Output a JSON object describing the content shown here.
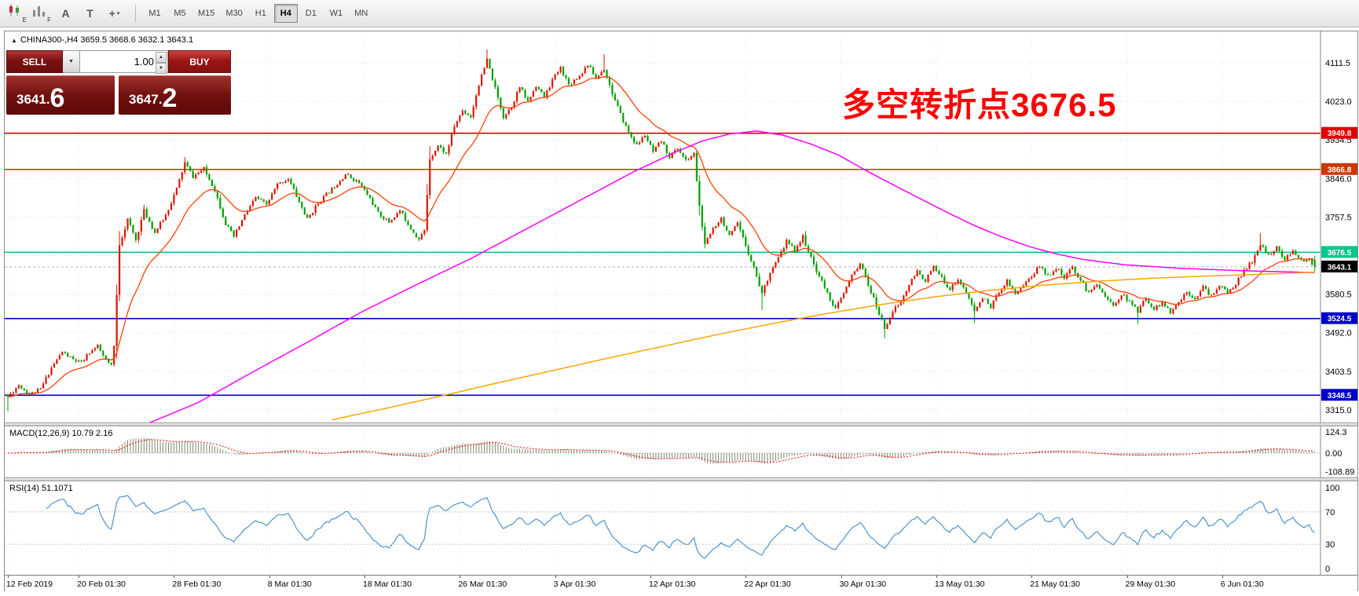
{
  "ui_glyphs": {
    "caret_down": "▼",
    "caret_up": "▲",
    "collapse": "▲"
  },
  "toolbar": {
    "icons": [
      {
        "name": "candlestick-chart-icon",
        "sub": "E"
      },
      {
        "name": "bar-chart-icon",
        "sub": "F"
      },
      {
        "name": "annotation-tool-icon",
        "glyph": "A"
      },
      {
        "name": "text-tool-icon",
        "glyph": "T"
      },
      {
        "name": "crosshair-tool-icon",
        "glyph": "+",
        "caret": "▾"
      }
    ],
    "timeframes": [
      "M1",
      "M5",
      "M15",
      "M30",
      "H1",
      "H4",
      "D1",
      "W1",
      "MN"
    ],
    "active_timeframe": "H4"
  },
  "trade_panel": {
    "sell_label": "SELL",
    "buy_label": "BUY",
    "volume": "1.00",
    "bid": "3641.6",
    "ask": "3647.2",
    "bid_small": "3641.",
    "bid_large": "6",
    "ask_small": "3647.",
    "ask_large": "2"
  },
  "chart": {
    "header": "CHINA300-,H4 3659.5 3668.6 3632.1 3643.1",
    "symbol": "CHINA300-",
    "timeframe": "H4",
    "ohlc": {
      "open": 3659.5,
      "high": 3668.6,
      "low": 3632.1,
      "close": 3643.1
    },
    "annotation": "多空转折点3676.5",
    "annotation_color": "#ff0000",
    "colors": {
      "bull": "#dd1500",
      "bear": "#00a000",
      "ma_fast": "#ff4000",
      "ma_mid": "#ff00ff",
      "ma_slow": "#ffa500",
      "macd_hist": "#7c8a6e",
      "macd_signal": "#ff0000",
      "rsi": "#4f94cd",
      "grid": "#dadada",
      "current_line": "#b0b0b0",
      "current_tag": "#000000"
    },
    "price_axis": {
      "start": 4111.5,
      "step": 88.5,
      "count": 10,
      "hidden": [
        3669.0
      ]
    },
    "levels": [
      {
        "price": 3949.8,
        "label": "3949.8",
        "color": "#dd0000"
      },
      {
        "price": 3866.8,
        "label": "3866.8",
        "color": "#cc3700"
      },
      {
        "price": 3676.5,
        "label": "3676.5",
        "color": "#00c88c"
      },
      {
        "price": 3524.5,
        "label": "3524.5",
        "color": "#0000c8"
      },
      {
        "price": 3348.5,
        "label": "3348.5",
        "color": "#0000c8"
      }
    ],
    "current_price": {
      "value": 3643.1,
      "label": "3643.1"
    },
    "time_axis": {
      "labels": [
        "12 Feb 2019",
        "20 Feb 01:30",
        "28 Feb 01:30",
        "8 Mar 01:30",
        "18 Mar 01:30",
        "26 Mar 01:30",
        "3 Apr 01:30",
        "12 Apr 01:30",
        "22 Apr 01:30",
        "30 Apr 01:30",
        "13 May 01:30",
        "21 May 01:30",
        "29 May 01:30",
        "6 Jun 01:30"
      ],
      "bar_positions": [
        0,
        26,
        61,
        96,
        131,
        166,
        201,
        236,
        271,
        306,
        341,
        376,
        411,
        446
      ]
    }
  },
  "chart_data": {
    "type": "candlestick",
    "bars": 481,
    "close_waypoints": [
      [
        0,
        3345
      ],
      [
        4,
        3372
      ],
      [
        8,
        3350
      ],
      [
        12,
        3362
      ],
      [
        16,
        3412
      ],
      [
        20,
        3448
      ],
      [
        24,
        3430
      ],
      [
        27,
        3422
      ],
      [
        30,
        3448
      ],
      [
        33,
        3460
      ],
      [
        36,
        3428
      ],
      [
        38,
        3415
      ],
      [
        39,
        3460
      ],
      [
        41,
        3695
      ],
      [
        44,
        3752
      ],
      [
        47,
        3705
      ],
      [
        50,
        3772
      ],
      [
        54,
        3722
      ],
      [
        58,
        3762
      ],
      [
        62,
        3822
      ],
      [
        65,
        3882
      ],
      [
        68,
        3850
      ],
      [
        72,
        3868
      ],
      [
        76,
        3820
      ],
      [
        80,
        3742
      ],
      [
        83,
        3712
      ],
      [
        87,
        3762
      ],
      [
        91,
        3802
      ],
      [
        95,
        3786
      ],
      [
        99,
        3832
      ],
      [
        103,
        3846
      ],
      [
        107,
        3792
      ],
      [
        110,
        3752
      ],
      [
        114,
        3790
      ],
      [
        119,
        3822
      ],
      [
        124,
        3856
      ],
      [
        129,
        3836
      ],
      [
        133,
        3800
      ],
      [
        136,
        3766
      ],
      [
        140,
        3746
      ],
      [
        144,
        3772
      ],
      [
        148,
        3732
      ],
      [
        151,
        3706
      ],
      [
        153,
        3726
      ],
      [
        155,
        3892
      ],
      [
        158,
        3922
      ],
      [
        161,
        3902
      ],
      [
        164,
        3966
      ],
      [
        167,
        4002
      ],
      [
        170,
        3988
      ],
      [
        173,
        4062
      ],
      [
        176,
        4118
      ],
      [
        179,
        4052
      ],
      [
        182,
        3988
      ],
      [
        185,
        4012
      ],
      [
        188,
        4056
      ],
      [
        191,
        4022
      ],
      [
        194,
        4060
      ],
      [
        197,
        4032
      ],
      [
        200,
        4072
      ],
      [
        203,
        4100
      ],
      [
        206,
        4062
      ],
      [
        210,
        4082
      ],
      [
        213,
        4108
      ],
      [
        216,
        4076
      ],
      [
        219,
        4098
      ],
      [
        222,
        4042
      ],
      [
        225,
        3992
      ],
      [
        228,
        3952
      ],
      [
        231,
        3922
      ],
      [
        234,
        3946
      ],
      [
        237,
        3906
      ],
      [
        240,
        3932
      ],
      [
        243,
        3896
      ],
      [
        246,
        3916
      ],
      [
        249,
        3886
      ],
      [
        252,
        3902
      ],
      [
        254,
        3782
      ],
      [
        256,
        3692
      ],
      [
        259,
        3732
      ],
      [
        262,
        3756
      ],
      [
        265,
        3712
      ],
      [
        268,
        3742
      ],
      [
        271,
        3692
      ],
      [
        274,
        3642
      ],
      [
        277,
        3582
      ],
      [
        280,
        3632
      ],
      [
        283,
        3662
      ],
      [
        286,
        3702
      ],
      [
        289,
        3682
      ],
      [
        292,
        3712
      ],
      [
        295,
        3662
      ],
      [
        298,
        3622
      ],
      [
        301,
        3582
      ],
      [
        304,
        3546
      ],
      [
        307,
        3582
      ],
      [
        310,
        3622
      ],
      [
        313,
        3652
      ],
      [
        316,
        3602
      ],
      [
        319,
        3552
      ],
      [
        322,
        3502
      ],
      [
        325,
        3542
      ],
      [
        328,
        3562
      ],
      [
        331,
        3602
      ],
      [
        334,
        3632
      ],
      [
        337,
        3612
      ],
      [
        340,
        3642
      ],
      [
        343,
        3616
      ],
      [
        346,
        3592
      ],
      [
        349,
        3616
      ],
      [
        352,
        3582
      ],
      [
        355,
        3542
      ],
      [
        358,
        3572
      ],
      [
        361,
        3552
      ],
      [
        364,
        3586
      ],
      [
        367,
        3612
      ],
      [
        370,
        3582
      ],
      [
        373,
        3602
      ],
      [
        376,
        3622
      ],
      [
        379,
        3646
      ],
      [
        382,
        3622
      ],
      [
        385,
        3642
      ],
      [
        388,
        3616
      ],
      [
        391,
        3642
      ],
      [
        394,
        3612
      ],
      [
        397,
        3582
      ],
      [
        400,
        3606
      ],
      [
        403,
        3576
      ],
      [
        406,
        3552
      ],
      [
        409,
        3582
      ],
      [
        412,
        3562
      ],
      [
        415,
        3542
      ],
      [
        418,
        3572
      ],
      [
        421,
        3546
      ],
      [
        424,
        3562
      ],
      [
        427,
        3536
      ],
      [
        430,
        3562
      ],
      [
        433,
        3586
      ],
      [
        436,
        3572
      ],
      [
        439,
        3596
      ],
      [
        442,
        3576
      ],
      [
        445,
        3602
      ],
      [
        448,
        3582
      ],
      [
        451,
        3606
      ],
      [
        454,
        3632
      ],
      [
        457,
        3656
      ],
      [
        460,
        3692
      ],
      [
        463,
        3672
      ],
      [
        466,
        3686
      ],
      [
        469,
        3662
      ],
      [
        472,
        3676
      ],
      [
        475,
        3656
      ],
      [
        478,
        3662
      ],
      [
        480,
        3643.1
      ]
    ],
    "extremes": {
      "high": [
        [
          65,
          3895
        ],
        [
          176,
          4142
        ],
        [
          219,
          4131
        ],
        [
          460,
          3721
        ]
      ],
      "low": [
        [
          0,
          3312
        ],
        [
          277,
          3544
        ],
        [
          322,
          3479
        ],
        [
          355,
          3514
        ],
        [
          415,
          3512
        ]
      ]
    },
    "ma_fast_period": 20,
    "ma_mid_waypoints": [
      [
        52,
        3285
      ],
      [
        70,
        3332
      ],
      [
        90,
        3402
      ],
      [
        110,
        3470
      ],
      [
        130,
        3540
      ],
      [
        150,
        3602
      ],
      [
        170,
        3662
      ],
      [
        185,
        3712
      ],
      [
        200,
        3762
      ],
      [
        215,
        3812
      ],
      [
        230,
        3862
      ],
      [
        245,
        3906
      ],
      [
        255,
        3932
      ],
      [
        265,
        3948
      ],
      [
        275,
        3955
      ],
      [
        285,
        3945
      ],
      [
        295,
        3925
      ],
      [
        305,
        3900
      ],
      [
        315,
        3865
      ],
      [
        325,
        3832
      ],
      [
        335,
        3800
      ],
      [
        345,
        3768
      ],
      [
        355,
        3738
      ],
      [
        365,
        3712
      ],
      [
        375,
        3690
      ],
      [
        385,
        3673
      ],
      [
        395,
        3660
      ],
      [
        410,
        3648
      ],
      [
        430,
        3640
      ],
      [
        455,
        3634
      ],
      [
        480,
        3630
      ]
    ],
    "ma_slow_waypoints": [
      [
        119,
        3292
      ],
      [
        140,
        3320
      ],
      [
        160,
        3348
      ],
      [
        180,
        3377
      ],
      [
        200,
        3405
      ],
      [
        220,
        3433
      ],
      [
        240,
        3460
      ],
      [
        260,
        3487
      ],
      [
        280,
        3512
      ],
      [
        300,
        3535
      ],
      [
        320,
        3556
      ],
      [
        340,
        3574
      ],
      [
        360,
        3589
      ],
      [
        380,
        3601
      ],
      [
        400,
        3610
      ],
      [
        420,
        3617
      ],
      [
        440,
        3622
      ],
      [
        460,
        3626
      ],
      [
        480,
        3631
      ]
    ],
    "indicators": {
      "macd": {
        "label": "MACD(12,26,9) 10.79 2.16",
        "fast": 12,
        "slow": 26,
        "signal_period": 9,
        "value": 10.79,
        "signal_value": 2.16,
        "axis": [
          {
            "v": 124.3,
            "label": "124.3"
          },
          {
            "v": 0,
            "label": "0.00"
          },
          {
            "v": -108.89,
            "label": "-108.89"
          }
        ]
      },
      "rsi": {
        "label": "RSI(14) 51.1071",
        "period": 14,
        "value": 51.1071,
        "levels": [
          70,
          30
        ],
        "axis": [
          {
            "v": 100,
            "label": "100"
          },
          {
            "v": 70,
            "label": "70"
          },
          {
            "v": 30,
            "label": "30"
          },
          {
            "v": 0,
            "label": "0"
          }
        ]
      }
    }
  }
}
